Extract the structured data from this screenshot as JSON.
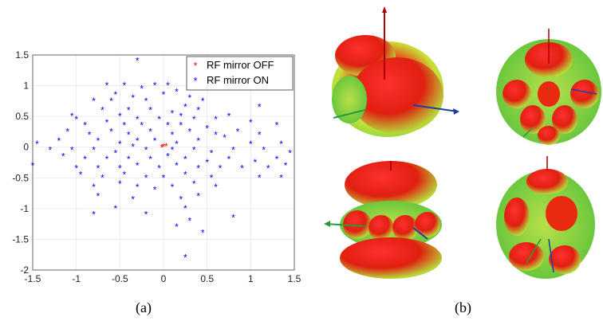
{
  "captions": {
    "a": "(a)",
    "b": "(b)"
  },
  "colors": {
    "off": "#ff0000",
    "on": "#0000ff",
    "grid": "#e6e6e6",
    "axis": "#444444"
  },
  "chart_data": {
    "type": "scatter",
    "xlim": [
      -1.5,
      1.5
    ],
    "ylim": [
      -2,
      1.5
    ],
    "xticks": [
      -1.5,
      -1,
      -0.5,
      0,
      0.5,
      1,
      1.5
    ],
    "xtick_labels": [
      "-1.5",
      "-1",
      "-0.5",
      "0",
      "0.5",
      "1",
      "1.5"
    ],
    "yticks": [
      -2,
      -1.5,
      -1,
      -0.5,
      0,
      0.5,
      1,
      1.5
    ],
    "ytick_labels": [
      "-2",
      "-1.5",
      "-1",
      "-0.5",
      "0",
      "0.5",
      "1",
      "1.5"
    ],
    "grid": true,
    "legend_position": "top-right",
    "marker": "*",
    "series": [
      {
        "name": "RF mirror OFF",
        "color": "#ff0000",
        "points": [
          [
            0,
            0
          ],
          [
            0.03,
            0.01
          ],
          [
            -0.02,
            -0.01
          ]
        ]
      },
      {
        "name": "RF mirror ON",
        "color": "#0000ff",
        "points": [
          [
            -0.3,
            1.4
          ],
          [
            -0.45,
            1.0
          ],
          [
            -0.65,
            1.0
          ],
          [
            -0.25,
            0.95
          ],
          [
            -0.1,
            1.0
          ],
          [
            0.05,
            1.0
          ],
          [
            0.15,
            0.9
          ],
          [
            -0.55,
            0.85
          ],
          [
            -0.35,
            0.8
          ],
          [
            -0.8,
            0.75
          ],
          [
            -0.6,
            0.75
          ],
          [
            0.3,
            0.8
          ],
          [
            0.45,
            0.75
          ],
          [
            -0.2,
            0.75
          ],
          [
            0.0,
            0.85
          ],
          [
            0.25,
            0.65
          ],
          [
            0.4,
            0.6
          ],
          [
            1.1,
            0.65
          ],
          [
            -0.7,
            0.6
          ],
          [
            -0.4,
            0.6
          ],
          [
            -0.15,
            0.6
          ],
          [
            0.1,
            0.55
          ],
          [
            0.2,
            0.5
          ],
          [
            -1.05,
            0.5
          ],
          [
            -1.0,
            0.45
          ],
          [
            -0.5,
            0.5
          ],
          [
            -0.3,
            0.45
          ],
          [
            -0.05,
            0.45
          ],
          [
            0.35,
            0.45
          ],
          [
            0.6,
            0.45
          ],
          [
            0.75,
            0.5
          ],
          [
            1.0,
            0.4
          ],
          [
            1.3,
            0.35
          ],
          [
            -0.9,
            0.35
          ],
          [
            -0.65,
            0.4
          ],
          [
            -0.45,
            0.35
          ],
          [
            -0.25,
            0.35
          ],
          [
            0.05,
            0.35
          ],
          [
            0.2,
            0.35
          ],
          [
            0.5,
            0.3
          ],
          [
            -1.1,
            0.25
          ],
          [
            -0.85,
            0.2
          ],
          [
            -0.6,
            0.25
          ],
          [
            -0.4,
            0.2
          ],
          [
            -0.15,
            0.25
          ],
          [
            0.1,
            0.2
          ],
          [
            0.3,
            0.25
          ],
          [
            0.6,
            0.2
          ],
          [
            0.85,
            0.25
          ],
          [
            1.1,
            0.2
          ],
          [
            -1.2,
            0.1
          ],
          [
            -0.75,
            0.1
          ],
          [
            -0.5,
            0.05
          ],
          [
            -0.3,
            0.1
          ],
          [
            -0.1,
            0.1
          ],
          [
            0.15,
            0.05
          ],
          [
            0.4,
            0.1
          ],
          [
            0.7,
            0.15
          ],
          [
            1.0,
            0.05
          ],
          [
            1.35,
            0.05
          ],
          [
            -1.45,
            0.05
          ],
          [
            -1.3,
            -0.05
          ],
          [
            -1.05,
            -0.05
          ],
          [
            -0.8,
            -0.05
          ],
          [
            -0.55,
            -0.1
          ],
          [
            -0.35,
            0.0
          ],
          [
            -0.2,
            -0.05
          ],
          [
            0.1,
            -0.05
          ],
          [
            0.35,
            -0.05
          ],
          [
            0.55,
            -0.1
          ],
          [
            0.8,
            -0.05
          ],
          [
            1.15,
            -0.05
          ],
          [
            1.45,
            -0.1
          ],
          [
            -1.15,
            -0.15
          ],
          [
            -0.9,
            -0.2
          ],
          [
            -0.65,
            -0.2
          ],
          [
            -0.4,
            -0.2
          ],
          [
            -0.15,
            -0.2
          ],
          [
            0.05,
            -0.15
          ],
          [
            0.25,
            -0.2
          ],
          [
            0.5,
            -0.25
          ],
          [
            0.75,
            -0.2
          ],
          [
            1.05,
            -0.25
          ],
          [
            1.3,
            -0.2
          ],
          [
            -1.5,
            -0.3
          ],
          [
            -1.0,
            -0.35
          ],
          [
            -0.75,
            -0.35
          ],
          [
            -0.5,
            -0.35
          ],
          [
            -0.3,
            -0.3
          ],
          [
            -0.05,
            -0.35
          ],
          [
            0.15,
            -0.3
          ],
          [
            0.4,
            -0.35
          ],
          [
            0.65,
            -0.35
          ],
          [
            0.9,
            -0.35
          ],
          [
            1.2,
            -0.35
          ],
          [
            1.4,
            -0.3
          ],
          [
            -0.95,
            -0.45
          ],
          [
            -0.7,
            -0.5
          ],
          [
            -0.45,
            -0.45
          ],
          [
            -0.2,
            -0.5
          ],
          [
            0.0,
            -0.5
          ],
          [
            0.25,
            -0.45
          ],
          [
            0.55,
            -0.5
          ],
          [
            1.1,
            -0.5
          ],
          [
            1.35,
            -0.5
          ],
          [
            -0.8,
            -0.65
          ],
          [
            -0.5,
            -0.6
          ],
          [
            -0.3,
            -0.65
          ],
          [
            -0.1,
            -0.7
          ],
          [
            0.1,
            -0.65
          ],
          [
            0.35,
            -0.6
          ],
          [
            0.6,
            -0.65
          ],
          [
            -0.75,
            -0.8
          ],
          [
            -0.35,
            -0.85
          ],
          [
            0.2,
            -0.85
          ],
          [
            0.4,
            -0.8
          ],
          [
            -0.55,
            -1.0
          ],
          [
            -0.2,
            -1.1
          ],
          [
            0.25,
            -1.0
          ],
          [
            -0.8,
            -1.1
          ],
          [
            0.3,
            -1.2
          ],
          [
            0.8,
            -1.15
          ],
          [
            0.15,
            -1.3
          ],
          [
            0.45,
            -1.4
          ],
          [
            0.25,
            -1.8
          ]
        ]
      }
    ]
  }
}
